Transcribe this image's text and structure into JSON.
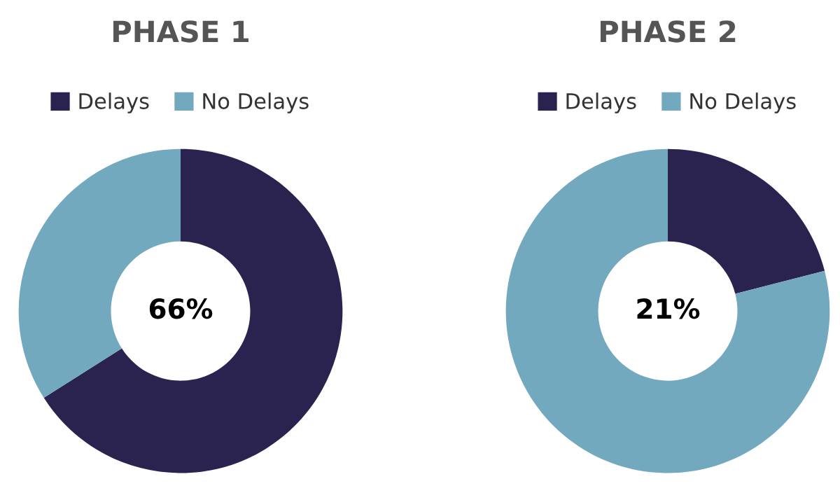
{
  "chart_data": [
    {
      "type": "donut",
      "title": "PHASE 1",
      "categories": [
        "Delays",
        "No Delays"
      ],
      "values": [
        66,
        34
      ],
      "colors": [
        "#2a2350",
        "#72a9be"
      ],
      "legend": "top",
      "annotations": [
        "66%"
      ]
    },
    {
      "type": "donut",
      "title": "PHASE 2",
      "categories": [
        "Delays",
        "No Delays"
      ],
      "values": [
        21,
        79
      ],
      "colors": [
        "#2a2350",
        "#72a9be"
      ],
      "legend": "top",
      "annotations": [
        "21%"
      ]
    }
  ]
}
